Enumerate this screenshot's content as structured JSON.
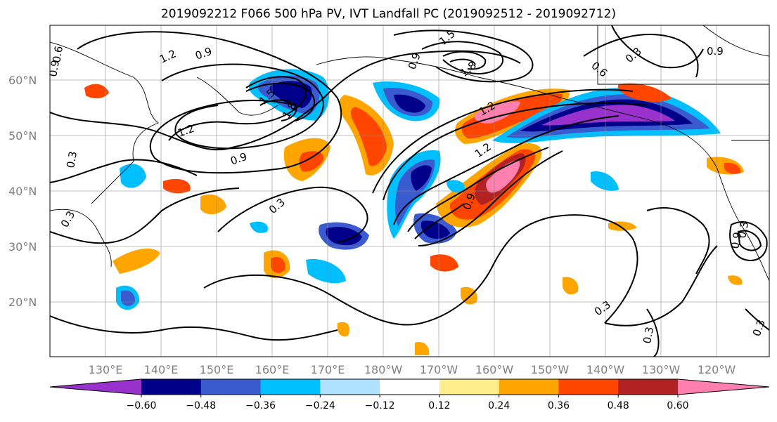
{
  "title": "2019092212 F066 500 hPa PV, IVT Landfall PC (2019092512 - 2019092712)",
  "lat_labels": [
    "60°N",
    "50°N",
    "40°N",
    "30°N",
    "20°N"
  ],
  "lon_labels": [
    "130°E",
    "140°E",
    "150°E",
    "160°E",
    "170°E",
    "180°W",
    "170°W",
    "160°W",
    "150°W",
    "140°W",
    "130°W",
    "120°W"
  ],
  "colorbar": {
    "colors": [
      "#9932cc",
      "#00008b",
      "#3a5bd0",
      "#00bfff",
      "#b0e2ff",
      "#ffffff",
      "#ffec8b",
      "#ffa500",
      "#ff4500",
      "#b22222",
      "#ff7fae"
    ],
    "labels": [
      "−0.60",
      "−0.48",
      "−0.36",
      "−0.24",
      "−0.12",
      "0.12",
      "0.24",
      "0.36",
      "0.48",
      "0.60"
    ]
  },
  "contour_labels": [
    "1.2",
    "0.9",
    "0.9",
    "1.5",
    "1.8",
    "0.6",
    "0.3",
    "0.9",
    "1.2",
    "1.5",
    "1.8",
    "1.2",
    "0.9",
    "1.2",
    "0.9",
    "0.3",
    "0.3",
    "0.3",
    "0.3",
    "0.9",
    "0.3",
    "0.3",
    "0.6",
    "0.9",
    "0.3"
  ]
}
